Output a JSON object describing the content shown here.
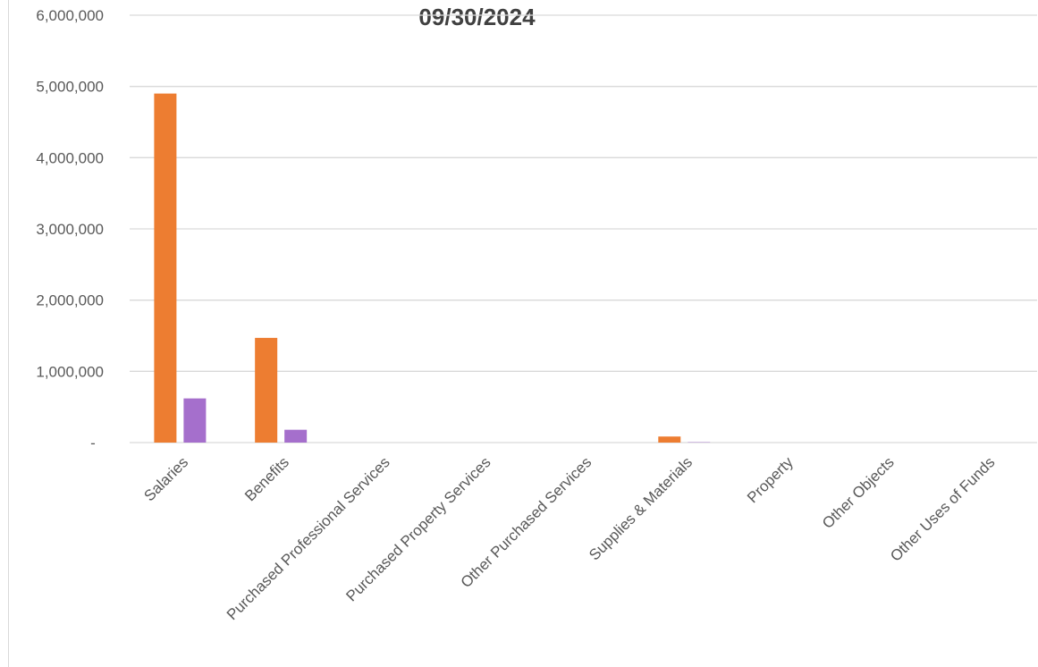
{
  "chart_data": {
    "type": "bar",
    "title": "09/30/2024",
    "xlabel": "",
    "ylabel": "",
    "categories": [
      "Salaries",
      "Benefits",
      "Purchased Professional Services",
      "Purchased Property Services",
      "Other Purchased Services",
      "Supplies & Materials",
      "Property",
      "Other Objects",
      "Other Uses of Funds"
    ],
    "series": [
      {
        "values": [
          4900000,
          1470000,
          0,
          0,
          0,
          85000,
          0,
          0,
          0
        ],
        "color": "#ED7D31"
      },
      {
        "values": [
          620000,
          180000,
          0,
          0,
          0,
          5000,
          0,
          0,
          0
        ],
        "color": "#A56FCC"
      }
    ],
    "ylim": [
      0,
      6000000
    ],
    "yticks": [
      0,
      1000000,
      2000000,
      3000000,
      4000000,
      5000000,
      6000000
    ],
    "ytick_labels": [
      "-",
      "1,000,000",
      "2,000,000",
      "3,000,000",
      "4,000,000",
      "5,000,000",
      "6,000,000"
    ],
    "grid": true,
    "legend": "none",
    "gridline_color": "#d9d9d9",
    "axis_text_color": "#595959"
  }
}
